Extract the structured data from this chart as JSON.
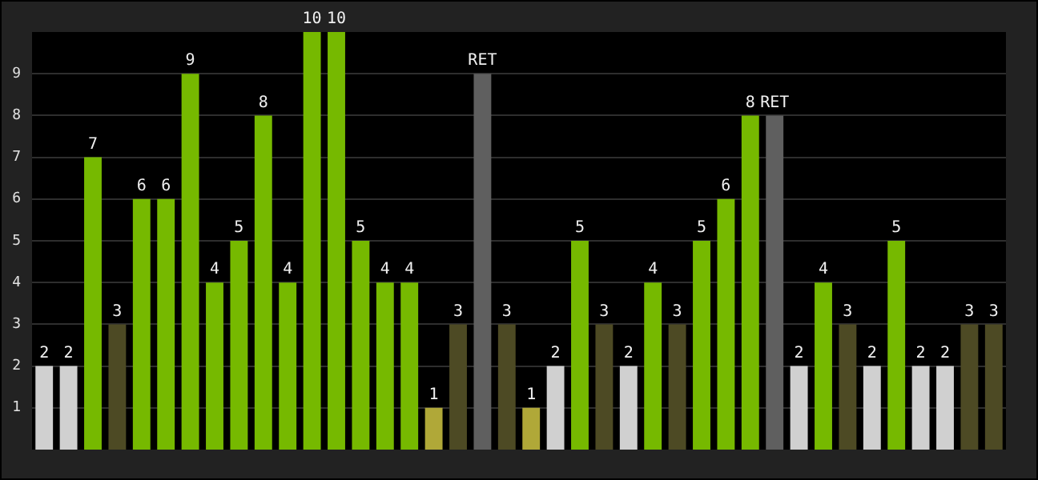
{
  "chart_data": {
    "type": "bar",
    "categories": [
      null,
      null,
      null,
      null,
      null,
      null,
      null,
      null,
      null,
      null,
      null,
      null,
      null,
      null,
      null,
      null,
      null,
      null,
      null,
      null,
      null,
      null,
      null,
      null,
      null,
      null,
      null,
      null,
      null,
      null,
      null,
      null,
      null,
      null,
      null,
      null,
      null,
      null,
      null,
      null
    ],
    "values": [
      2,
      2,
      7,
      3,
      6,
      6,
      9,
      4,
      5,
      8,
      4,
      10,
      10,
      5,
      4,
      4,
      1,
      3,
      9,
      3,
      1,
      2,
      5,
      3,
      2,
      4,
      3,
      5,
      6,
      8,
      8,
      2,
      4,
      3,
      2,
      5,
      2,
      2,
      3,
      3
    ],
    "colors": [
      "#d0d0d0",
      "#d0d0d0",
      "#76b900",
      "#4d4a24",
      "#76b900",
      "#76b900",
      "#76b900",
      "#76b900",
      "#76b900",
      "#76b900",
      "#76b900",
      "#76b900",
      "#76b900",
      "#76b900",
      "#76b900",
      "#76b900",
      "#b0a838",
      "#4d4a24",
      "#5f5f5f",
      "#4d4a24",
      "#b0a838",
      "#d0d0d0",
      "#76b900",
      "#4d4a24",
      "#d0d0d0",
      "#76b900",
      "#4d4a24",
      "#76b900",
      "#76b900",
      "#76b900",
      "#5f5f5f",
      "#d0d0d0",
      "#76b900",
      "#4d4a24",
      "#d0d0d0",
      "#76b900",
      "#d0d0d0",
      "#d0d0d0",
      "#4d4a24",
      "#4d4a24"
    ],
    "value_labels": [
      "2",
      "2",
      "7",
      "3",
      "6",
      "6",
      "9",
      "4",
      "5",
      "8",
      "4",
      "10",
      "10",
      "5",
      "4",
      "4",
      "1",
      "3",
      "RET",
      "3",
      "1",
      "2",
      "5",
      "3",
      "2",
      "4",
      "3",
      "5",
      "6",
      "8",
      "RET",
      "2",
      "4",
      "3",
      "2",
      "5",
      "2",
      "2",
      "3",
      "3"
    ],
    "ylim": [
      0,
      10
    ],
    "yticks": [
      1,
      2,
      3,
      4,
      5,
      6,
      7,
      8,
      9
    ],
    "grid": "y",
    "tick_labels": "y",
    "legend": false
  }
}
